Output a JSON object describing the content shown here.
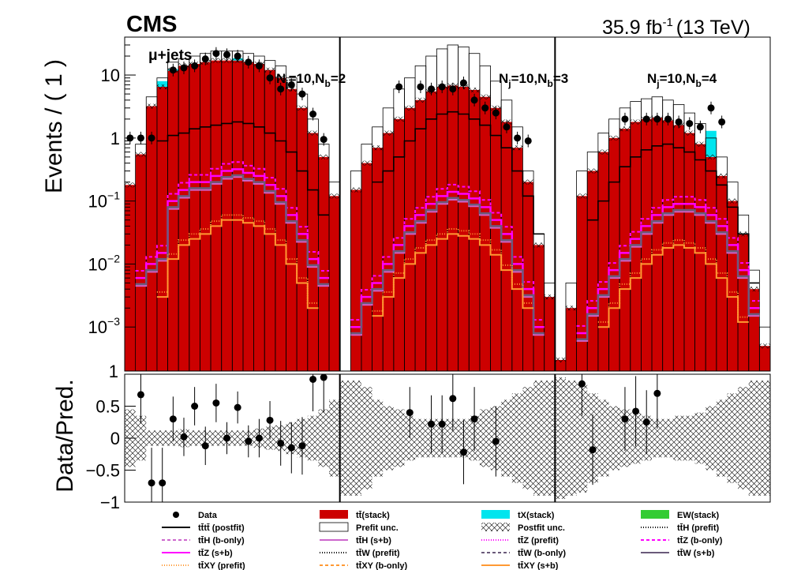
{
  "header": {
    "experiment": "CMS",
    "lumi": "35.9 fb",
    "lumi_exp": "-1",
    "energy": "(13 TeV)",
    "channel": "μ+jets"
  },
  "colors": {
    "ttbar": "#cc0000",
    "tX": "#00e5ee",
    "EW": "#33cc33",
    "magenta": "#ff00ff",
    "violet": "#cc66cc",
    "grey": "#6b5a7a",
    "orange": "#ff9933",
    "data": "#000000"
  },
  "chart_data": [
    {
      "type": "bar",
      "name": "main",
      "ylabel": "Events / ( 1 )",
      "yscale": "log",
      "ylim": [
        0.0002,
        40
      ],
      "yticks": [
        {
          "value": 10,
          "base": "10",
          "exp": ""
        },
        {
          "value": 1,
          "base": "1",
          "exp": ""
        },
        {
          "value": 0.1,
          "base": "10",
          "exp": "−1"
        },
        {
          "value": 0.01,
          "base": "10",
          "exp": "−2"
        },
        {
          "value": 0.001,
          "base": "10",
          "exp": "−3"
        }
      ],
      "bottom_label": "1",
      "regions": [
        {
          "label": "N",
          "label_sub": "j",
          "label_mid": "=10,N",
          "label_sub2": "b",
          "label_end": "=2",
          "ttbar": [
            0.18,
            0.55,
            3.2,
            6.5,
            12,
            14,
            15,
            16,
            17,
            17,
            17,
            16,
            15,
            12,
            9,
            6,
            3,
            1.2,
            0.5,
            0.12
          ],
          "tX": [
            0,
            0,
            0,
            1.5,
            0.4,
            0,
            0,
            0,
            0,
            0,
            1.5,
            0,
            0,
            0,
            0,
            0,
            0,
            0,
            0,
            0
          ],
          "prefit_unc": [
            0.0,
            0.8,
            4.5,
            9,
            16,
            18,
            20,
            22,
            24,
            24,
            24,
            22,
            20,
            17,
            14,
            9,
            5,
            2.0,
            0.8,
            0.2
          ],
          "data": [
            1.0,
            1.0,
            1.0,
            null,
            12,
            13,
            14,
            18,
            22,
            21,
            20,
            16,
            14,
            9,
            6,
            7,
            5,
            2.4,
            0.95,
            null
          ],
          "tttt_postfit": [
            null,
            null,
            null,
            0.9,
            1.1,
            1.2,
            1.4,
            1.5,
            1.6,
            1.7,
            1.8,
            1.7,
            1.5,
            1.2,
            0.9,
            0.6,
            0.3,
            0.15,
            0.06,
            null
          ],
          "ttH": [
            null,
            0.006,
            0.01,
            0.015,
            0.1,
            0.15,
            0.2,
            0.2,
            0.25,
            0.3,
            0.32,
            0.28,
            0.25,
            0.18,
            0.12,
            0.06,
            0.03,
            0.012,
            0.006,
            null
          ],
          "ttXY": [
            null,
            null,
            null,
            0.003,
            0.012,
            0.02,
            0.025,
            0.03,
            0.04,
            0.05,
            0.05,
            0.045,
            0.04,
            0.03,
            0.02,
            0.01,
            0.005,
            0.002,
            null,
            null
          ]
        },
        {
          "label": "N",
          "label_sub": "j",
          "label_mid": "=10,N",
          "label_sub2": "b",
          "label_end": "=3",
          "ttbar": [
            0.0,
            0.15,
            0.4,
            0.7,
            1.2,
            2.0,
            3.0,
            4.0,
            5.5,
            6.5,
            6.8,
            6.5,
            5.8,
            4.5,
            3.0,
            1.8,
            0.7,
            0.2,
            0.02,
            0.003
          ],
          "tX": [
            0,
            0,
            0,
            0,
            0,
            0,
            0,
            0,
            0,
            0,
            0,
            0,
            0,
            0,
            0,
            0,
            0,
            0,
            0,
            0
          ],
          "prefit_unc": [
            0.0,
            0.3,
            0.8,
            1.5,
            3.0,
            6.0,
            9.0,
            14,
            20,
            26,
            30,
            28,
            22,
            14,
            8,
            4,
            1.5,
            0.3,
            0.03,
            0.005
          ],
          "data": [
            null,
            null,
            null,
            null,
            null,
            6.5,
            null,
            6.5,
            6.0,
            6.5,
            6.0,
            7.5,
            4.0,
            3.0,
            2.5,
            1.5,
            1.0,
            0.9,
            null,
            null
          ],
          "tttt_postfit": [
            null,
            null,
            null,
            0.2,
            0.3,
            0.5,
            0.9,
            1.4,
            2.0,
            2.4,
            2.6,
            2.4,
            2.0,
            1.6,
            1.1,
            0.7,
            0.3,
            0.12,
            0.03,
            null
          ],
          "ttH": [
            null,
            0.001,
            0.003,
            0.005,
            0.01,
            0.02,
            0.04,
            0.06,
            0.09,
            0.12,
            0.14,
            0.13,
            0.11,
            0.08,
            0.05,
            0.03,
            0.01,
            0.004,
            0.001,
            null
          ],
          "ttXY": [
            null,
            null,
            null,
            0.0015,
            0.003,
            0.006,
            0.01,
            0.015,
            0.02,
            0.025,
            0.03,
            0.028,
            0.025,
            0.02,
            0.014,
            0.008,
            0.004,
            0.002,
            null,
            null
          ]
        },
        {
          "label": "N",
          "label_sub": "j",
          "label_mid": "=10,N",
          "label_sub2": "b",
          "label_end": "=4",
          "ttbar": [
            0.0003,
            0.002,
            0.12,
            0.3,
            0.6,
            1.0,
            1.4,
            1.8,
            2.0,
            2.1,
            1.9,
            1.6,
            1.2,
            0.8,
            0.5,
            0.25,
            0.1,
            0.03,
            0.004,
            0.0005
          ],
          "tX": [
            0,
            0,
            0,
            0,
            0,
            0,
            0,
            0,
            0,
            0,
            0,
            0,
            0,
            0,
            0.8,
            0,
            0,
            0,
            0,
            0
          ],
          "prefit_unc": [
            0.0,
            0.005,
            0.3,
            0.6,
            1.2,
            2.0,
            3.0,
            3.8,
            4.2,
            4.5,
            4.0,
            3.4,
            2.5,
            1.7,
            1.0,
            0.5,
            0.2,
            0.06,
            0.008,
            0.001
          ],
          "data": [
            null,
            null,
            null,
            null,
            null,
            null,
            2.0,
            null,
            2.0,
            2.0,
            2.0,
            1.8,
            1.7,
            1.5,
            3.0,
            1.8,
            null,
            null,
            null,
            null
          ],
          "tttt_postfit": [
            null,
            null,
            null,
            0.05,
            0.1,
            0.2,
            0.35,
            0.5,
            0.65,
            0.75,
            0.8,
            0.7,
            0.6,
            0.45,
            0.3,
            0.18,
            0.08,
            0.03,
            0.005,
            null
          ],
          "ttH": [
            null,
            null,
            0.0008,
            0.002,
            0.004,
            0.008,
            0.015,
            0.025,
            0.04,
            0.06,
            0.08,
            0.09,
            0.09,
            0.08,
            0.06,
            0.04,
            0.02,
            0.008,
            0.002,
            null
          ],
          "ttXY": [
            null,
            null,
            null,
            null,
            0.001,
            0.002,
            0.004,
            0.006,
            0.01,
            0.014,
            0.018,
            0.02,
            0.018,
            0.015,
            0.01,
            0.006,
            0.003,
            0.0012,
            null,
            null
          ]
        }
      ]
    },
    {
      "type": "scatter",
      "name": "ratio",
      "ylabel": "Data/Pred.",
      "ylim": [
        -1,
        1
      ],
      "yticks": [
        {
          "value": 0.5,
          "label": "0.5"
        },
        {
          "value": 0,
          "label": "0"
        },
        {
          "value": -0.5,
          "label": "−0.5"
        },
        {
          "value": -1,
          "label": "−1"
        }
      ],
      "top_label": "1",
      "regions": [
        {
          "points": [
            null,
            0.68,
            -0.7,
            -0.7,
            0.3,
            0.02,
            0.5,
            -0.12,
            0.55,
            0.0,
            0.48,
            -0.05,
            0.0,
            0.28,
            -0.08,
            -0.15,
            -0.12,
            0.92,
            0.95,
            null
          ],
          "errors": [
            null,
            0.45,
            0.55,
            0.55,
            0.35,
            0.3,
            0.3,
            0.3,
            0.3,
            0.25,
            0.25,
            0.25,
            0.3,
            0.3,
            0.35,
            0.4,
            0.45,
            0.5,
            0.55,
            null
          ],
          "band": [
            0.45,
            0.35,
            0.12,
            0.12,
            0.12,
            0.14,
            0.12,
            0.12,
            0.12,
            0.12,
            0.12,
            0.12,
            0.15,
            0.18,
            0.2,
            0.25,
            0.3,
            0.35,
            0.45,
            0.6
          ]
        },
        {
          "points": [
            null,
            null,
            null,
            null,
            null,
            null,
            0.4,
            null,
            0.22,
            0.22,
            0.62,
            -0.22,
            0.3,
            null,
            -0.05,
            null,
            null,
            null,
            null,
            null
          ],
          "errors": [
            null,
            null,
            null,
            null,
            null,
            null,
            0.4,
            null,
            0.45,
            0.45,
            0.5,
            0.5,
            0.5,
            null,
            0.55,
            null,
            null,
            null,
            null,
            null
          ],
          "band": [
            0.9,
            0.9,
            0.8,
            0.6,
            0.5,
            0.45,
            0.35,
            0.3,
            0.3,
            0.3,
            0.3,
            0.3,
            0.35,
            0.45,
            0.5,
            0.6,
            0.7,
            0.8,
            0.9,
            0.9
          ]
        },
        {
          "points": [
            null,
            null,
            0.85,
            -0.18,
            null,
            null,
            0.3,
            0.42,
            0.25,
            0.7,
            null,
            null,
            null,
            null,
            null,
            null,
            null,
            null,
            null,
            null
          ],
          "errors": [
            null,
            null,
            0.5,
            0.55,
            null,
            null,
            0.5,
            0.55,
            0.5,
            0.55,
            null,
            null,
            null,
            null,
            null,
            null,
            null,
            null,
            null,
            null
          ],
          "band": [
            0.95,
            0.9,
            0.85,
            0.7,
            0.6,
            0.5,
            0.45,
            0.4,
            0.35,
            0.3,
            0.3,
            0.35,
            0.35,
            0.4,
            0.5,
            0.6,
            0.7,
            0.8,
            0.9,
            0.9
          ]
        }
      ]
    }
  ],
  "legend": [
    {
      "label": "Data",
      "style": "data",
      "icon": "dot-icon"
    },
    {
      "label": "tt̄(stack)",
      "style": "fill",
      "color": "#cc0000",
      "icon": "fill-icon"
    },
    {
      "label": "tX(stack)",
      "style": "fill",
      "color": "#00e5ee",
      "icon": "fill-icon"
    },
    {
      "label": "EW(stack)",
      "style": "fill",
      "color": "#33cc33",
      "icon": "fill-icon"
    },
    {
      "label": "tt̄tt̄ (postfit)",
      "style": "line",
      "color": "#000000",
      "dash": "",
      "icon": "line-icon"
    },
    {
      "label": "Prefit unc.",
      "style": "box",
      "icon": "box-icon"
    },
    {
      "label": "Postfit unc.",
      "style": "hatch",
      "icon": "hatch-icon"
    },
    {
      "label": "tt̄H (prefit)",
      "style": "line",
      "color": "#000000",
      "dash": "1,2",
      "icon": "line-icon"
    },
    {
      "label": "tt̄H (b-only)",
      "style": "line",
      "color": "#cc66cc",
      "dash": "4,3",
      "icon": "line-icon"
    },
    {
      "label": "tt̄H (s+b)",
      "style": "line",
      "color": "#cc66cc",
      "dash": "",
      "icon": "line-icon"
    },
    {
      "label": "tt̄Z (prefit)",
      "style": "line",
      "color": "#ff00ff",
      "dash": "1,2",
      "icon": "line-icon"
    },
    {
      "label": "tt̄Z (b-only)",
      "style": "line",
      "color": "#ff00ff",
      "dash": "4,3",
      "icon": "line-icon"
    },
    {
      "label": "tt̄Z (s+b)",
      "style": "line",
      "color": "#ff00ff",
      "dash": "",
      "icon": "line-icon"
    },
    {
      "label": "tt̄W (prefit)",
      "style": "line",
      "color": "#000000",
      "dash": "1,2",
      "icon": "line-icon"
    },
    {
      "label": "tt̄W (b-only)",
      "style": "line",
      "color": "#6b5a7a",
      "dash": "4,3",
      "icon": "line-icon"
    },
    {
      "label": "tt̄W (s+b)",
      "style": "line",
      "color": "#6b5a7a",
      "dash": "",
      "icon": "line-icon"
    },
    {
      "label": "tt̄XY (prefit)",
      "style": "line",
      "color": "#ff9933",
      "dash": "1,2",
      "icon": "line-icon"
    },
    {
      "label": "tt̄XY (b-only)",
      "style": "line",
      "color": "#ff9933",
      "dash": "4,3",
      "icon": "line-icon"
    },
    {
      "label": "tt̄XY (s+b)",
      "style": "line",
      "color": "#ff9933",
      "dash": "",
      "icon": "line-icon"
    }
  ]
}
